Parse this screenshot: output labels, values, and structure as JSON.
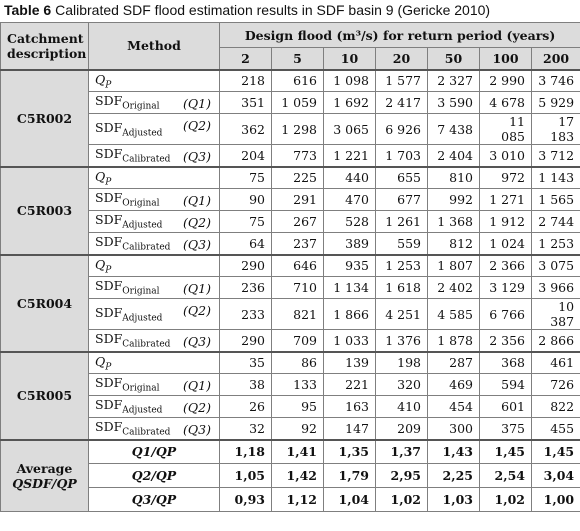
{
  "caption": {
    "label": "Table 6",
    "text": "Calibrated SDF flood estimation results in SDF basin 9 (Gericke 2010)"
  },
  "headers": {
    "catchment": "Catchment description",
    "method": "Method",
    "design_flood": "Design flood (m³/s) for return period (years)",
    "periods": [
      "2",
      "5",
      "10",
      "20",
      "50",
      "100",
      "200"
    ]
  },
  "methods": [
    {
      "main": "Q",
      "sub": "P",
      "italic": true,
      "q": ""
    },
    {
      "main": "SDF",
      "sub": "Original",
      "italic": false,
      "q": "(Q1)"
    },
    {
      "main": "SDF",
      "sub": "Adjusted",
      "italic": false,
      "q": "(Q2)"
    },
    {
      "main": "SDF",
      "sub": "Calibrated",
      "italic": false,
      "q": "(Q3)"
    }
  ],
  "catchments": [
    {
      "name": "C5R002",
      "rows": [
        [
          "218",
          "616",
          "1 098",
          "1 577",
          "2 327",
          "2 990",
          "3 746"
        ],
        [
          "351",
          "1 059",
          "1 692",
          "2 417",
          "3 590",
          "4 678",
          "5 929"
        ],
        [
          "362",
          "1 298",
          "3 065",
          "6 926",
          "7 438",
          "11 085",
          "17 183"
        ],
        [
          "204",
          "773",
          "1 221",
          "1 703",
          "2 404",
          "3 010",
          "3 712"
        ]
      ]
    },
    {
      "name": "C5R003",
      "rows": [
        [
          "75",
          "225",
          "440",
          "655",
          "810",
          "972",
          "1 143"
        ],
        [
          "90",
          "291",
          "470",
          "677",
          "992",
          "1 271",
          "1 565"
        ],
        [
          "75",
          "267",
          "528",
          "1 261",
          "1 368",
          "1 912",
          "2 744"
        ],
        [
          "64",
          "237",
          "389",
          "559",
          "812",
          "1 024",
          "1 253"
        ]
      ]
    },
    {
      "name": "C5R004",
      "rows": [
        [
          "290",
          "646",
          "935",
          "1 253",
          "1 807",
          "2 366",
          "3 075"
        ],
        [
          "236",
          "710",
          "1 134",
          "1 618",
          "2 402",
          "3 129",
          "3 966"
        ],
        [
          "233",
          "821",
          "1 866",
          "4 251",
          "4 585",
          "6 766",
          "10 387"
        ],
        [
          "290",
          "709",
          "1 033",
          "1 376",
          "1 878",
          "2 356",
          "2 866"
        ]
      ]
    },
    {
      "name": "C5R005",
      "rows": [
        [
          "35",
          "86",
          "139",
          "198",
          "287",
          "368",
          "461"
        ],
        [
          "38",
          "133",
          "221",
          "320",
          "469",
          "594",
          "726"
        ],
        [
          "26",
          "95",
          "163",
          "410",
          "454",
          "601",
          "822"
        ],
        [
          "32",
          "92",
          "147",
          "209",
          "300",
          "375",
          "455"
        ]
      ]
    }
  ],
  "average": {
    "label_line1": "Average",
    "label_line2": "QSDF/QP",
    "rows": [
      {
        "label": "Q1/QP",
        "values": [
          "1,18",
          "1,41",
          "1,35",
          "1,37",
          "1,43",
          "1,45",
          "1,45"
        ]
      },
      {
        "label": "Q2/QP",
        "values": [
          "1,05",
          "1,42",
          "1,79",
          "2,95",
          "2,25",
          "2,54",
          "3,04"
        ]
      },
      {
        "label": "Q3/QP",
        "values": [
          "0,93",
          "1,12",
          "1,04",
          "1,02",
          "1,03",
          "1,02",
          "1,00"
        ]
      }
    ]
  }
}
